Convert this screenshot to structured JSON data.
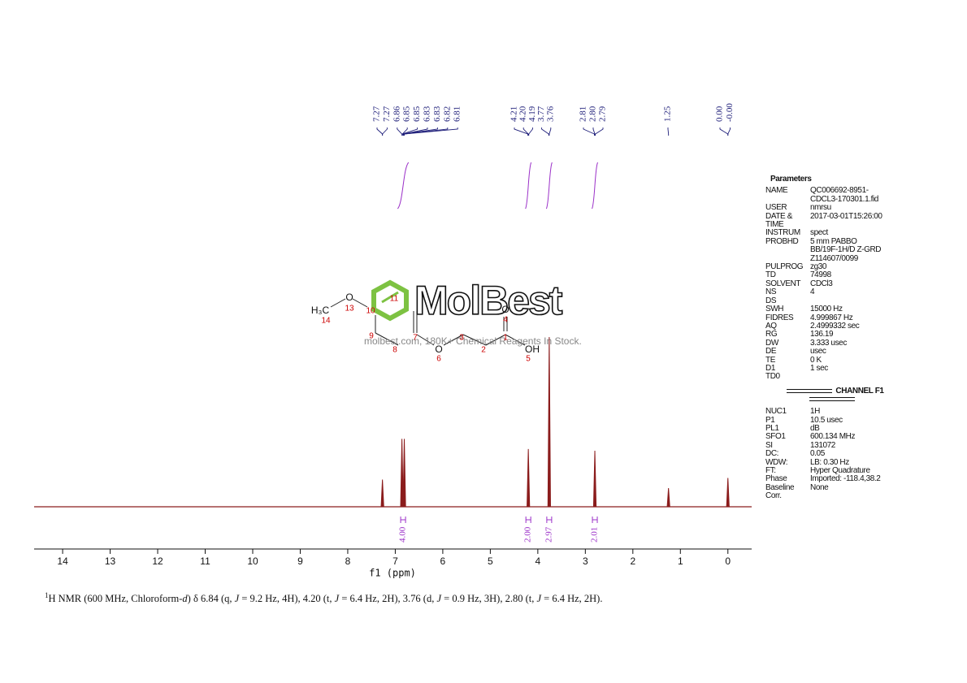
{
  "chart_data": {
    "type": "spectrum",
    "xlabel": "f1 (ppm)",
    "xlim": [
      14.6,
      -0.5
    ],
    "xticks": [
      14,
      13,
      12,
      11,
      10,
      9,
      8,
      7,
      6,
      5,
      4,
      3,
      2,
      1,
      0
    ],
    "ylim": [
      0,
      100
    ],
    "color": "#8b1c1c",
    "peaks": [
      {
        "ppm": 7.27,
        "height": 16
      },
      {
        "ppm": 6.86,
        "height": 40
      },
      {
        "ppm": 6.81,
        "height": 40
      },
      {
        "ppm": 4.2,
        "height": 34
      },
      {
        "ppm": 3.76,
        "height": 100
      },
      {
        "ppm": 2.8,
        "height": 33
      },
      {
        "ppm": 1.25,
        "height": 11
      },
      {
        "ppm": 0,
        "height": 17
      }
    ],
    "peak_label_color": "#1f1f7a",
    "peak_label_groups": [
      [
        7.27,
        7.27,
        6.86,
        6.85,
        6.85,
        6.83,
        6.83,
        6.82,
        6.81
      ],
      [
        4.21,
        {
          "value": 4.2,
          "label": "4.20"
        },
        4.19,
        3.77,
        3.76
      ],
      [
        2.81,
        {
          "value": 2.8,
          "label": "2.80"
        },
        2.79
      ],
      [
        1.25
      ],
      [
        {
          "value": 0,
          "label": "0.00"
        },
        {
          "value": 0,
          "label": "-0.00"
        }
      ]
    ],
    "integral_color": "#9b30c8",
    "integrals": [
      {
        "from": 6.95,
        "to": 6.72,
        "value": 4,
        "label": "4.00"
      },
      {
        "from": 4.26,
        "to": 4.14,
        "value": 2,
        "label": "2.00"
      },
      {
        "from": 3.82,
        "to": 3.7,
        "value": 2.97
      },
      {
        "from": 2.86,
        "to": 2.74,
        "value": 2.01
      }
    ]
  },
  "structure": {
    "labels": [
      "H₃C",
      "14",
      "O",
      "13",
      "10",
      "11",
      "9",
      "8",
      "7",
      "O",
      "6",
      "3",
      "2",
      "1",
      "OH",
      "5",
      "O",
      "4"
    ]
  },
  "watermark": {
    "brand": "MolBest",
    "text": "molbest.com, 180K+ Chemical Reagents In Stock."
  },
  "parameters": {
    "title": "Parameters",
    "rows": [
      [
        "NAME",
        "QC006692-8951-\nCDCL3-170301.1.fid"
      ],
      [
        "USER",
        "nmrsu"
      ],
      [
        "DATE &\nTIME",
        "2017-03-01T15:26:00"
      ],
      [
        "INSTRUM",
        "spect"
      ],
      [
        "PROBHD",
        "5 mm PABBO\nBB/19F-1H/D Z-GRD\nZ114607/0099"
      ],
      [
        "PULPROG",
        "zg30"
      ],
      [
        "TD",
        "74998"
      ],
      [
        "SOLVENT",
        "CDCl3"
      ],
      [
        "NS",
        "4"
      ],
      [
        "DS"
      ],
      [
        "SWH",
        "15000 Hz"
      ],
      [
        "FIDRES",
        "4.999867 Hz"
      ],
      [
        "AQ",
        "2.4999332 sec"
      ],
      [
        "RG",
        "136.19"
      ],
      [
        "DW",
        "3.333 usec"
      ],
      [
        "DE",
        "usec"
      ],
      [
        "TE",
        "0 K"
      ],
      [
        "D1",
        "1 sec"
      ],
      [
        "TD0"
      ]
    ],
    "channel": "CHANNEL F1",
    "channel_rows": [
      [
        "NUC1",
        "1H"
      ],
      [
        "P1",
        "10.5 usec"
      ],
      [
        "PL1",
        "dB"
      ],
      [
        "SFO1",
        "600.134 MHz"
      ],
      [
        "SI",
        "131072"
      ],
      [
        "DC:",
        "0.05"
      ],
      [
        "WDW:",
        "LB: 0.30 Hz"
      ],
      [
        "FT:",
        "Hyper Quadrature"
      ],
      [
        "Phase",
        "Imported: -118.4,38.2"
      ],
      [
        "Baseline\nCorr.",
        "None"
      ]
    ]
  },
  "caption": [
    "1",
    "H NMR (600 MHz, Chloroform-",
    "d",
    ") δ 6.84 (q, ",
    "J",
    " = 9.2 Hz, 4H), 4.20 (t, ",
    "J",
    " = 6.4 Hz, 2H), 3.76 (d, ",
    "J",
    " = 0.9 Hz, 3H), 2.80 (t, ",
    "J",
    " = 6.4 Hz, 2H)."
  ]
}
